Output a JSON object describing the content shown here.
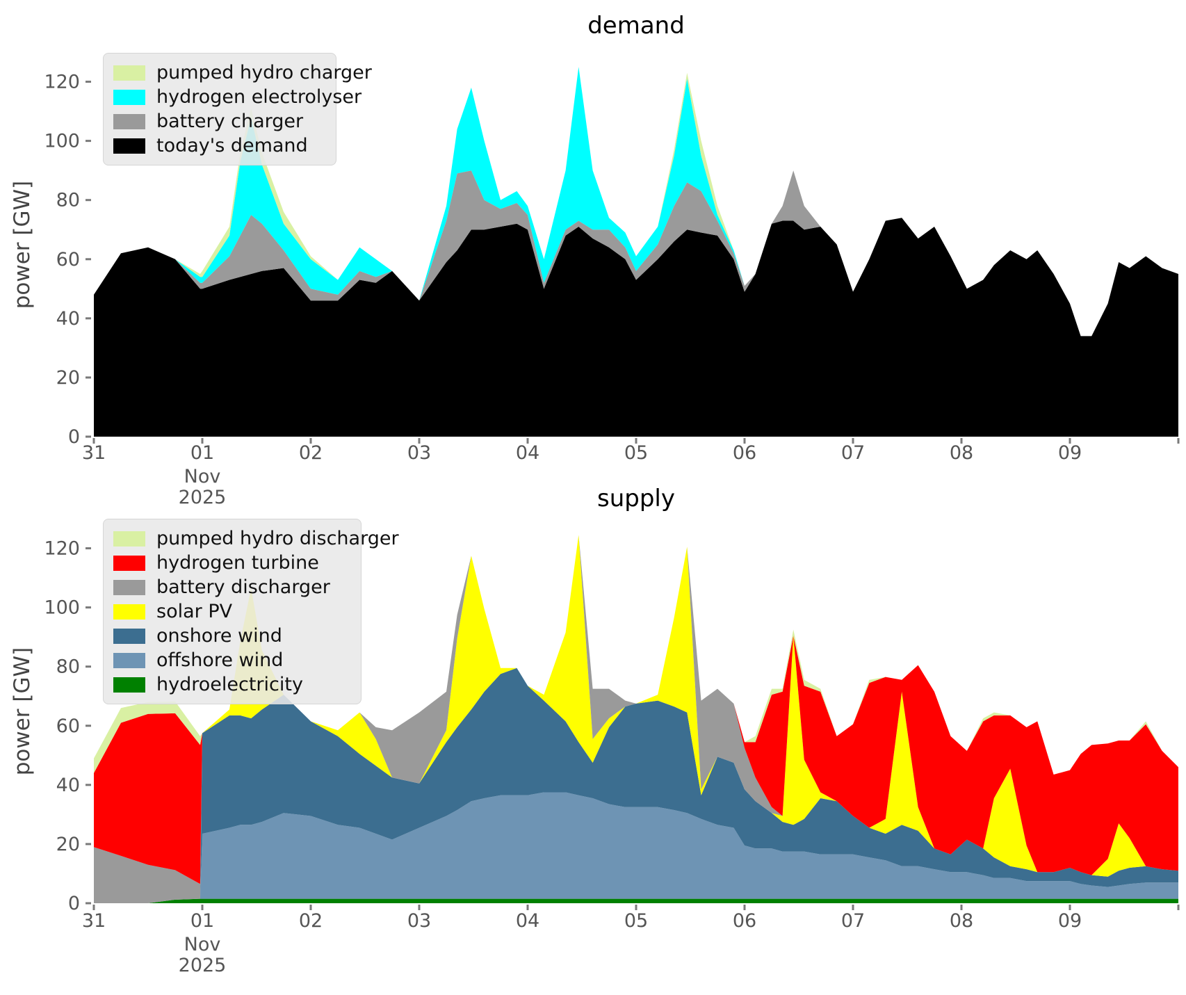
{
  "figure": {
    "demand_title": "demand",
    "supply_title": "supply",
    "ylabel": "power [GW]"
  },
  "axes": {
    "yticks": [
      "0",
      "20",
      "40",
      "60",
      "80",
      "100",
      "120"
    ],
    "xticks": [
      {
        "t": 0,
        "label": "31"
      },
      {
        "t": 1,
        "label": "01",
        "sub": [
          "Nov",
          "2025"
        ]
      },
      {
        "t": 2,
        "label": "02"
      },
      {
        "t": 3,
        "label": "03"
      },
      {
        "t": 4,
        "label": "04"
      },
      {
        "t": 5,
        "label": "05"
      },
      {
        "t": 6,
        "label": "06"
      },
      {
        "t": 7,
        "label": "07"
      },
      {
        "t": 8,
        "label": "08"
      },
      {
        "t": 9,
        "label": "09"
      },
      {
        "t": 10,
        "label": ""
      }
    ]
  },
  "colors": {
    "pumped_hydro": "#d9f0a3",
    "electrolyser_cyan": "#00ffff",
    "battery_gray": "#9a9a9a",
    "demand_black": "#000000",
    "turbine_red": "#ff0000",
    "solar_yellow": "#ffff00",
    "onshore_blue": "#3c6e90",
    "offshore_blue": "#6e94b4",
    "hydro_green": "#008000",
    "tick_label": "#555555",
    "tick_mark": "#7a7a7a",
    "legend_bg": "#e8e8e8"
  },
  "chart_data": [
    {
      "type": "area",
      "stacked": true,
      "title": "demand",
      "ylabel": "power [GW]",
      "xlabel": "",
      "ylim": [
        0,
        130
      ],
      "x_days": [
        0,
        0.25,
        0.5,
        0.75,
        0.98,
        1,
        1.25,
        1.35,
        1.45,
        1.55,
        1.75,
        2,
        2.25,
        2.45,
        2.6,
        2.75,
        3,
        3.25,
        3.35,
        3.48,
        3.6,
        3.75,
        3.9,
        4,
        4.15,
        4.35,
        4.47,
        4.6,
        4.75,
        4.9,
        5,
        5.2,
        5.35,
        5.47,
        5.6,
        5.75,
        5.9,
        6,
        6.1,
        6.25,
        6.35,
        6.45,
        6.55,
        6.7,
        6.85,
        7,
        7.15,
        7.3,
        7.45,
        7.6,
        7.75,
        7.9,
        8.05,
        8.2,
        8.3,
        8.45,
        8.6,
        8.7,
        8.85,
        9,
        9.1,
        9.2,
        9.35,
        9.45,
        9.55,
        9.7,
        9.85,
        10
      ],
      "series": [
        {
          "name": "today's demand",
          "color": "#000000",
          "values": [
            48,
            62,
            64,
            60,
            50,
            50,
            53,
            54,
            55,
            56,
            57,
            46,
            46,
            53,
            52,
            56,
            46,
            59,
            63,
            70,
            70,
            71,
            72,
            70,
            50,
            68,
            71,
            67,
            64,
            60,
            53,
            60,
            66,
            70,
            69,
            68,
            60,
            49,
            55,
            72,
            73,
            73,
            70,
            71,
            65,
            49,
            60,
            73,
            74,
            67,
            71,
            61,
            50,
            53,
            58,
            63,
            60,
            63,
            55,
            45,
            34,
            34,
            45,
            59,
            57,
            61,
            57,
            55
          ]
        },
        {
          "name": "battery charger",
          "color": "#9a9a9a",
          "values": [
            0,
            0,
            0,
            0,
            2,
            2,
            8,
            14,
            20,
            16,
            6,
            4,
            2,
            3,
            2,
            0,
            0,
            14,
            26,
            20,
            10,
            6,
            7,
            5,
            2,
            2,
            2,
            3,
            6,
            4,
            3,
            5,
            12,
            16,
            14,
            5,
            2,
            2,
            0,
            0,
            5,
            17,
            8,
            0,
            0,
            0,
            0,
            0,
            0,
            0,
            0,
            0,
            0,
            0,
            0,
            0,
            0,
            0,
            0,
            0,
            0,
            0,
            0,
            0,
            0,
            0,
            0,
            0
          ]
        },
        {
          "name": "hydrogen electrolyser",
          "color": "#00ffff",
          "values": [
            0,
            0,
            0,
            0,
            2,
            2,
            7,
            25,
            33,
            20,
            9,
            10,
            5,
            8,
            6,
            0,
            0,
            5,
            15,
            28,
            20,
            3,
            4,
            3,
            8,
            20,
            52,
            20,
            4,
            5,
            5,
            6,
            17,
            35,
            12,
            2,
            1,
            0,
            0,
            0,
            0,
            0,
            0,
            0,
            0,
            0,
            0,
            0,
            0,
            0,
            0,
            0,
            0,
            0,
            0,
            0,
            0,
            0,
            0,
            0,
            0,
            0,
            0,
            0,
            0,
            0,
            0,
            0
          ]
        },
        {
          "name": "pumped hydro charger",
          "color": "#d9f0a3",
          "values": [
            0,
            0,
            0,
            0,
            1,
            2,
            3,
            3,
            3,
            4,
            4,
            1,
            0,
            0,
            0,
            0,
            0,
            0,
            0,
            0,
            0,
            0,
            0,
            0,
            0,
            0,
            0,
            0,
            0,
            0,
            0,
            0,
            2,
            2,
            5,
            3,
            0,
            0,
            0,
            0,
            0,
            0,
            0,
            0,
            0,
            0,
            0,
            0,
            0,
            0,
            0,
            0,
            0,
            0,
            0,
            0,
            0,
            0,
            0,
            0,
            0,
            0,
            0,
            0,
            0,
            0,
            0,
            0
          ]
        }
      ],
      "legend": [
        {
          "label": "pumped hydro charger",
          "color": "#d9f0a3"
        },
        {
          "label": "hydrogen electrolyser",
          "color": "#00ffff"
        },
        {
          "label": "battery charger",
          "color": "#9a9a9a"
        },
        {
          "label": "today's demand",
          "color": "#000000"
        }
      ],
      "legend_position": "upper left",
      "grid": false
    },
    {
      "type": "area",
      "stacked": true,
      "title": "supply",
      "ylabel": "power [GW]",
      "xlabel": "",
      "ylim": [
        0,
        130
      ],
      "x_days": [
        0,
        0.25,
        0.5,
        0.75,
        0.98,
        1,
        1.25,
        1.35,
        1.45,
        1.55,
        1.75,
        2,
        2.25,
        2.45,
        2.6,
        2.75,
        3,
        3.25,
        3.35,
        3.48,
        3.6,
        3.75,
        3.9,
        4,
        4.15,
        4.35,
        4.47,
        4.6,
        4.75,
        4.9,
        5,
        5.2,
        5.35,
        5.47,
        5.6,
        5.75,
        5.9,
        6,
        6.1,
        6.25,
        6.35,
        6.45,
        6.55,
        6.7,
        6.85,
        7,
        7.15,
        7.3,
        7.45,
        7.6,
        7.75,
        7.9,
        8.05,
        8.2,
        8.3,
        8.45,
        8.6,
        8.7,
        8.85,
        9,
        9.1,
        9.2,
        9.35,
        9.45,
        9.55,
        9.7,
        9.85,
        10
      ],
      "series": [
        {
          "name": "hydroelectricity",
          "color": "#008000",
          "values": [
            0,
            0,
            0,
            1.2,
            1.5,
            1.5,
            1.5,
            1.5,
            1.5,
            1.5,
            1.5,
            1.5,
            1.5,
            1.5,
            1.5,
            1.5,
            1.5,
            1.5,
            1.5,
            1.5,
            1.5,
            1.5,
            1.5,
            1.5,
            1.5,
            1.5,
            1.5,
            1.5,
            1.5,
            1.5,
            1.5,
            1.5,
            1.5,
            1.5,
            1.5,
            1.5,
            1.5,
            1.5,
            1.5,
            1.5,
            1.5,
            1.5,
            1.5,
            1.5,
            1.5,
            1.5,
            1.5,
            1.5,
            1.5,
            1.5,
            1.5,
            1.5,
            1.5,
            1.5,
            1.5,
            1.5,
            1.5,
            1.5,
            1.5,
            1.5,
            1.5,
            1.5,
            1.5,
            1.5,
            1.5,
            1.5,
            1.5,
            1.5
          ]
        },
        {
          "name": "offshore wind",
          "color": "#6e94b4",
          "values": [
            0,
            0,
            0,
            0,
            0,
            22,
            24,
            25,
            25,
            26,
            29,
            28,
            25,
            24,
            22,
            20,
            24,
            28,
            30,
            33,
            34,
            35,
            35,
            35,
            36,
            36,
            35,
            34,
            32,
            31,
            31,
            31,
            30,
            29,
            27,
            25,
            24,
            18,
            17,
            17,
            16,
            16,
            16,
            15,
            15,
            15,
            14,
            13,
            11,
            11,
            10,
            9,
            9,
            8,
            7,
            7,
            6,
            6,
            6,
            6,
            5,
            4.5,
            4,
            4.5,
            5,
            5.5,
            5.5,
            5.5
          ]
        },
        {
          "name": "onshore wind",
          "color": "#3c6e90",
          "values": [
            0,
            0,
            0,
            0,
            0,
            34,
            38,
            37,
            36,
            38,
            40,
            32,
            30,
            25,
            23,
            21,
            15,
            25,
            28,
            31,
            36,
            41,
            43,
            37,
            31,
            24,
            18,
            12,
            26,
            34,
            35,
            36,
            35,
            34,
            8,
            23,
            22,
            19,
            16,
            12,
            10,
            9,
            11,
            19,
            18,
            13,
            10,
            9,
            14,
            12,
            7,
            6,
            11,
            9,
            7,
            4,
            4,
            3,
            3,
            4.5,
            4,
            3.5,
            3.5,
            5,
            5.5,
            5.5,
            4.5,
            4
          ]
        },
        {
          "name": "solar PV",
          "color": "#ffff00",
          "values": [
            0,
            0,
            0,
            0,
            0,
            0,
            2,
            25,
            44,
            20,
            0,
            0,
            2,
            14,
            9,
            0,
            0,
            4,
            30,
            52,
            28,
            2,
            0,
            0,
            2,
            30,
            70,
            8,
            3,
            0,
            0,
            2,
            30,
            56,
            2,
            0,
            0,
            0,
            0,
            0,
            2,
            64,
            20,
            2,
            0,
            0,
            0,
            5,
            45,
            8,
            0,
            0,
            0,
            0,
            20,
            33,
            8,
            0,
            0,
            0,
            0,
            0,
            6,
            16,
            10,
            0,
            0,
            0
          ]
        },
        {
          "name": "battery discharger",
          "color": "#9a9a9a",
          "values": [
            19,
            16,
            13,
            10,
            5,
            0,
            0,
            0,
            0,
            0,
            0,
            0,
            0,
            0,
            4,
            16,
            24,
            13,
            8,
            0,
            0,
            0,
            0,
            0,
            0,
            0,
            0,
            17,
            10,
            2,
            0,
            0,
            0,
            0,
            30,
            23,
            20,
            14,
            8,
            2,
            0,
            0,
            0,
            0,
            0,
            0,
            0,
            0,
            0,
            0,
            0,
            0,
            0,
            0,
            0,
            0,
            0,
            0,
            0,
            0,
            0,
            0,
            0,
            0,
            0,
            0,
            0,
            0
          ]
        },
        {
          "name": "hydrogen turbine",
          "color": "#ff0000",
          "values": [
            25,
            45,
            51,
            53,
            47,
            0,
            0,
            0,
            0,
            0,
            0,
            0,
            0,
            0,
            0,
            0,
            0,
            0,
            0,
            0,
            0,
            0,
            0,
            0,
            0,
            0,
            0,
            0,
            0,
            0,
            0,
            0,
            0,
            0,
            0,
            0,
            0,
            2,
            12,
            38,
            42,
            0,
            25,
            34,
            22,
            31,
            49,
            48,
            4,
            48,
            53,
            40,
            30,
            43,
            28,
            18,
            40,
            51,
            33,
            33,
            40,
            44,
            39,
            28,
            33,
            48,
            40,
            35
          ]
        },
        {
          "name": "pumped hydro discharger",
          "color": "#d9f0a3",
          "values": [
            5,
            5,
            4,
            4,
            3,
            0,
            0,
            0,
            0,
            0,
            0,
            0,
            0,
            0,
            0,
            0,
            0,
            0,
            0,
            0,
            0,
            0,
            0,
            0,
            0,
            0,
            0,
            0,
            0,
            0,
            0,
            0,
            0,
            0,
            0,
            0,
            0,
            0,
            2,
            2,
            1,
            2,
            2,
            1,
            0,
            0,
            1,
            0,
            0,
            0,
            0,
            0,
            0,
            1,
            1,
            0,
            0,
            0,
            0,
            0,
            0,
            0,
            0,
            0,
            0,
            1,
            0,
            0
          ]
        }
      ],
      "legend": [
        {
          "label": "pumped hydro discharger",
          "color": "#d9f0a3"
        },
        {
          "label": "hydrogen turbine",
          "color": "#ff0000"
        },
        {
          "label": "battery discharger",
          "color": "#9a9a9a"
        },
        {
          "label": "solar PV",
          "color": "#ffff00"
        },
        {
          "label": "onshore wind",
          "color": "#3c6e90"
        },
        {
          "label": "offshore wind",
          "color": "#6e94b4"
        },
        {
          "label": "hydroelectricity",
          "color": "#008000"
        }
      ],
      "legend_position": "upper left",
      "grid": false
    }
  ]
}
